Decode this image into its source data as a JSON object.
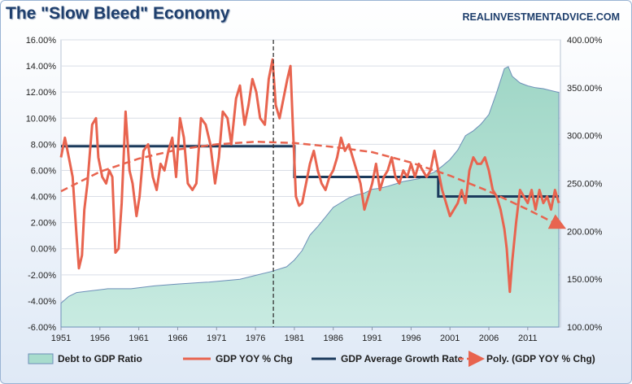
{
  "title": "The \"Slow Bleed\" Economy",
  "brand": "REALINVESTMENTADVICE.COM",
  "chart_data": {
    "type": "line",
    "x_range": [
      1951,
      2015.2
    ],
    "x_ticks": [
      "1951",
      "1956",
      "1961",
      "1966",
      "1971",
      "1976",
      "1981",
      "1986",
      "1991",
      "1996",
      "2001",
      "2006",
      "2011"
    ],
    "y_left": {
      "range": [
        -6,
        16
      ],
      "ticks": [
        "16.00%",
        "14.00%",
        "12.00%",
        "10.00%",
        "8.00%",
        "6.00%",
        "4.00%",
        "2.00%",
        "0.00%",
        "-2.00%",
        "-4.00%",
        "-6.00%"
      ]
    },
    "y_right": {
      "range": [
        100,
        400
      ],
      "ticks": [
        "400.00%",
        "350.00%",
        "300.00%",
        "250.00%",
        "200.00%",
        "150.00%",
        "100.00%"
      ]
    },
    "vertical_marker_year": 1978.3,
    "legend": [
      {
        "label": "Debt to GDP Ratio",
        "color": "#a8dccd"
      },
      {
        "label": "GDP YOY % Chg",
        "color": "#e8644f"
      },
      {
        "label": "GDP Average Growth Rate",
        "color": "#1b3a5c"
      },
      {
        "label": "Poly. (GDP YOY % Chg)",
        "color": "#e8644f"
      }
    ],
    "series": [
      {
        "name": "Debt to GDP Ratio",
        "axis": "right",
        "x": [
          1951,
          1952,
          1953,
          1955,
          1957,
          1960,
          1963,
          1966,
          1970,
          1974,
          1976,
          1978,
          1980,
          1981,
          1982,
          1983,
          1984,
          1985,
          1986,
          1987,
          1988,
          1989,
          1990,
          1991,
          1992,
          1993,
          1995,
          1997,
          1999,
          2000,
          2001,
          2002,
          2003,
          2004,
          2005,
          2006,
          2007,
          2008,
          2008.5,
          2009,
          2010,
          2011,
          2012,
          2013,
          2014,
          2015
        ],
        "y": [
          125,
          132,
          136,
          138,
          140,
          140,
          143,
          145,
          147,
          150,
          154,
          158,
          163,
          170,
          180,
          196,
          205,
          215,
          225,
          230,
          235,
          238,
          240,
          244,
          245,
          247,
          252,
          255,
          262,
          268,
          275,
          285,
          300,
          305,
          312,
          322,
          345,
          370,
          372,
          362,
          355,
          352,
          350,
          349,
          347,
          345
        ]
      },
      {
        "name": "GDP YOY % Chg",
        "axis": "left",
        "x": [
          1951,
          1951.5,
          1952,
          1952.5,
          1953,
          1953.3,
          1953.7,
          1954,
          1954.4,
          1955,
          1955.5,
          1955.8,
          1956.3,
          1956.8,
          1957.2,
          1957.6,
          1958,
          1958.4,
          1958.8,
          1959.3,
          1959.8,
          1960.2,
          1960.7,
          1961.1,
          1961.6,
          1962.2,
          1962.8,
          1963.3,
          1963.8,
          1964.3,
          1964.8,
          1965.3,
          1965.8,
          1966.3,
          1966.8,
          1967.3,
          1967.9,
          1968.4,
          1969,
          1969.6,
          1970.2,
          1970.8,
          1971.3,
          1971.8,
          1972.4,
          1972.9,
          1973.5,
          1974,
          1974.6,
          1975.1,
          1975.6,
          1976.1,
          1976.6,
          1977.2,
          1977.7,
          1978.2,
          1978.6,
          1979.1,
          1979.6,
          1980.1,
          1980.5,
          1980.8,
          1981.2,
          1981.6,
          1982,
          1982.5,
          1983,
          1983.5,
          1984,
          1984.5,
          1985,
          1985.5,
          1986,
          1986.5,
          1987,
          1987.5,
          1988,
          1988.5,
          1989,
          1989.5,
          1990,
          1990.5,
          1991,
          1991.5,
          1992,
          1992.5,
          1993,
          1993.5,
          1994,
          1994.5,
          1995,
          1995.5,
          1996,
          1996.5,
          1997,
          1997.5,
          1998,
          1998.5,
          1999,
          1999.5,
          2000,
          2000.5,
          2001,
          2001.5,
          2002,
          2002.5,
          2003,
          2003.5,
          2004,
          2004.5,
          2005,
          2005.5,
          2006,
          2006.5,
          2007,
          2007.5,
          2008,
          2008.3,
          2008.7,
          2009,
          2009.5,
          2010,
          2010.5,
          2011,
          2011.5,
          2012,
          2012.5,
          2013,
          2013.5,
          2014,
          2014.5,
          2015
        ],
        "y": [
          7.0,
          8.5,
          7.0,
          5.5,
          1.0,
          -1.5,
          -0.5,
          3.0,
          5.0,
          9.5,
          10.0,
          7.0,
          5.5,
          5.0,
          6.0,
          5.5,
          -0.3,
          0.0,
          3.5,
          10.5,
          6.0,
          5.0,
          2.5,
          4.0,
          7.5,
          8.0,
          5.5,
          4.5,
          6.5,
          6.0,
          7.5,
          8.5,
          5.5,
          10.0,
          8.5,
          5.0,
          4.5,
          5.0,
          10.0,
          9.5,
          8.0,
          5.0,
          7.0,
          10.5,
          10.0,
          8.0,
          11.5,
          12.5,
          9.5,
          11.0,
          13.0,
          12.0,
          10.0,
          9.5,
          13.0,
          14.5,
          11.0,
          10.0,
          11.5,
          13.0,
          14.0,
          9.5,
          4.0,
          3.3,
          3.5,
          5.0,
          6.5,
          7.5,
          6.0,
          5.0,
          4.5,
          5.5,
          6.0,
          7.0,
          8.5,
          7.5,
          8.0,
          7.0,
          6.0,
          5.0,
          3.0,
          4.0,
          5.0,
          6.5,
          4.5,
          5.5,
          6.0,
          7.0,
          5.5,
          5.0,
          6.0,
          5.5,
          6.5,
          5.5,
          6.5,
          6.0,
          5.5,
          6.0,
          7.5,
          6.0,
          4.5,
          3.5,
          2.5,
          3.0,
          3.5,
          4.5,
          3.5,
          6.0,
          7.0,
          6.5,
          6.5,
          7.0,
          6.0,
          4.5,
          4.0,
          3.0,
          1.5,
          0.0,
          -3.3,
          -1.0,
          2.0,
          4.5,
          4.0,
          3.5,
          4.5,
          3.0,
          4.5,
          3.5,
          4.0,
          3.0,
          4.5,
          3.5
        ]
      },
      {
        "name": "GDP Average Growth Rate",
        "axis": "left",
        "x": [
          1951,
          1981,
          1981,
          1999.5,
          1999.5,
          2015
        ],
        "y": [
          7.85,
          7.85,
          5.5,
          5.5,
          4.0,
          4.0
        ]
      },
      {
        "name": "Poly. (GDP YOY % Chg)",
        "axis": "left",
        "x": [
          1951,
          1956,
          1961,
          1966,
          1971,
          1976,
          1981,
          1986,
          1991,
          1996,
          2001,
          2006,
          2011,
          2015
        ],
        "y": [
          4.4,
          5.9,
          6.9,
          7.6,
          8.0,
          8.2,
          8.1,
          7.8,
          7.4,
          6.6,
          5.6,
          4.4,
          3.0,
          1.8
        ]
      }
    ]
  }
}
